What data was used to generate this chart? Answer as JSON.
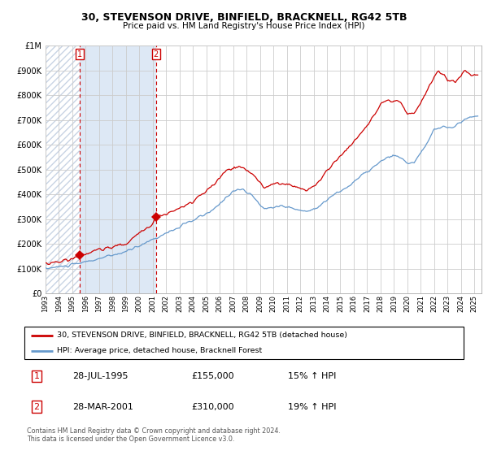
{
  "title": "30, STEVENSON DRIVE, BINFIELD, BRACKNELL, RG42 5TB",
  "subtitle": "Price paid vs. HM Land Registry's House Price Index (HPI)",
  "legend_line1": "30, STEVENSON DRIVE, BINFIELD, BRACKNELL, RG42 5TB (detached house)",
  "legend_line2": "HPI: Average price, detached house, Bracknell Forest",
  "footer1": "Contains HM Land Registry data © Crown copyright and database right 2024.",
  "footer2": "This data is licensed under the Open Government Licence v3.0.",
  "purchase1_label": "1",
  "purchase1_date": "28-JUL-1995",
  "purchase1_price": "£155,000",
  "purchase1_hpi": "15% ↑ HPI",
  "purchase2_label": "2",
  "purchase2_date": "28-MAR-2001",
  "purchase2_price": "£310,000",
  "purchase2_hpi": "19% ↑ HPI",
  "purchase1_x": 1995.57,
  "purchase1_y": 155000,
  "purchase2_x": 2001.24,
  "purchase2_y": 310000,
  "line_color_red": "#cc0000",
  "line_color_blue": "#6699cc",
  "marker_color_red": "#cc0000",
  "shade_between_color": "#dde8f5",
  "hatch_color": "#c8d4e4",
  "grid_color": "#cccccc",
  "background_color": "#ffffff",
  "ylim": [
    0,
    1000000
  ],
  "xlim_start": 1993.0,
  "xlim_end": 2025.5,
  "yticks": [
    0,
    100000,
    200000,
    300000,
    400000,
    500000,
    600000,
    700000,
    800000,
    900000,
    1000000
  ],
  "ytick_labels": [
    "£0",
    "£100K",
    "£200K",
    "£300K",
    "£400K",
    "£500K",
    "£600K",
    "£700K",
    "£800K",
    "£900K",
    "£1M"
  ],
  "xtick_labels": [
    "1993",
    "1994",
    "1995",
    "1996",
    "1997",
    "1998",
    "1999",
    "2000",
    "2001",
    "2002",
    "2003",
    "2004",
    "2005",
    "2006",
    "2007",
    "2008",
    "2009",
    "2010",
    "2011",
    "2012",
    "2013",
    "2014",
    "2015",
    "2016",
    "2017",
    "2018",
    "2019",
    "2020",
    "2021",
    "2022",
    "2023",
    "2024",
    "2025"
  ]
}
